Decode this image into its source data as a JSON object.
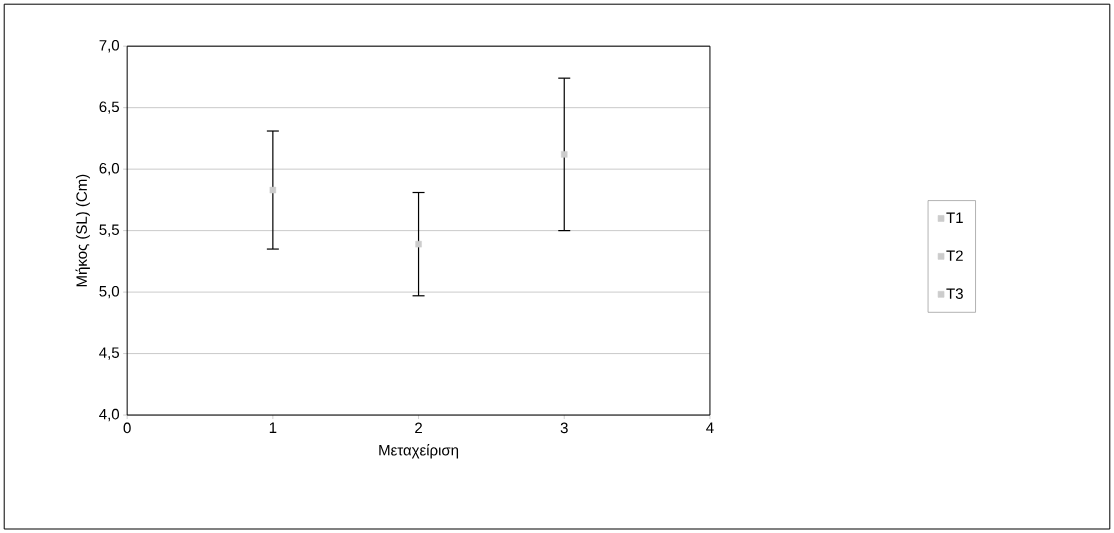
{
  "chart_data": {
    "type": "scatter",
    "xlabel": "Μεταχείριση",
    "ylabel": "Μήκος (SL) (Cm)",
    "xlim": [
      0,
      4
    ],
    "xticks": [
      0,
      1,
      2,
      3,
      4
    ],
    "ylim": [
      4.0,
      7.0
    ],
    "yticks": [
      {
        "value": 4.0,
        "label": "4,0"
      },
      {
        "value": 4.5,
        "label": "4,5"
      },
      {
        "value": 5.0,
        "label": "5,0"
      },
      {
        "value": 5.5,
        "label": "5,5"
      },
      {
        "value": 6.0,
        "label": "6,0"
      },
      {
        "value": 6.5,
        "label": "6,5"
      },
      {
        "value": 7.0,
        "label": "7,0"
      }
    ],
    "grid": "y",
    "legend": "right",
    "marker": "square",
    "series": [
      {
        "name": "T1",
        "color": "#cccccc",
        "x": [
          1
        ],
        "values": [
          5.83
        ],
        "errors": [
          0.48
        ]
      },
      {
        "name": "T2",
        "color": "#cccccc",
        "x": [
          2
        ],
        "values": [
          5.39
        ],
        "errors": [
          0.42
        ]
      },
      {
        "name": "T3",
        "color": "#cccccc",
        "x": [
          3
        ],
        "values": [
          6.12
        ],
        "errors": [
          0.62
        ]
      }
    ]
  }
}
